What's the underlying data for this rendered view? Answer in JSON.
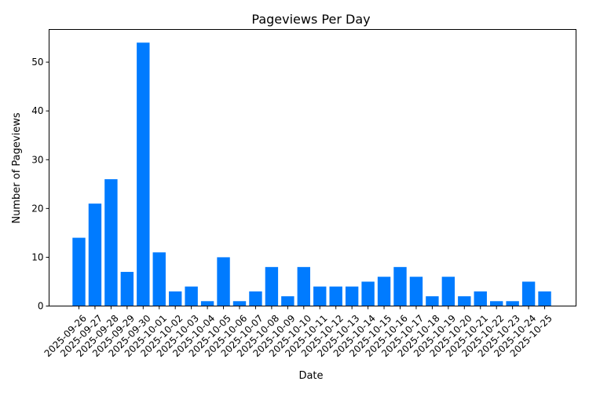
{
  "chart_data": {
    "type": "bar",
    "title": "Pageviews Per Day",
    "xlabel": "Date",
    "ylabel": "Number of Pageviews",
    "ylim": [
      0,
      56.7
    ],
    "yticks": [
      0,
      10,
      20,
      30,
      40,
      50
    ],
    "grid": false,
    "bar_color": "#007bff",
    "categories": [
      "2025-09-26",
      "2025-09-27",
      "2025-09-28",
      "2025-09-29",
      "2025-09-30",
      "2025-10-01",
      "2025-10-02",
      "2025-10-03",
      "2025-10-04",
      "2025-10-05",
      "2025-10-06",
      "2025-10-07",
      "2025-10-08",
      "2025-10-09",
      "2025-10-10",
      "2025-10-11",
      "2025-10-12",
      "2025-10-13",
      "2025-10-14",
      "2025-10-15",
      "2025-10-16",
      "2025-10-17",
      "2025-10-18",
      "2025-10-19",
      "2025-10-20",
      "2025-10-21",
      "2025-10-22",
      "2025-10-23",
      "2025-10-24",
      "2025-10-25"
    ],
    "values": [
      14,
      21,
      26,
      7,
      54,
      11,
      3,
      4,
      1,
      10,
      1,
      3,
      8,
      2,
      8,
      4,
      4,
      4,
      5,
      6,
      8,
      6,
      2,
      6,
      2,
      3,
      1,
      1,
      5,
      3
    ]
  }
}
